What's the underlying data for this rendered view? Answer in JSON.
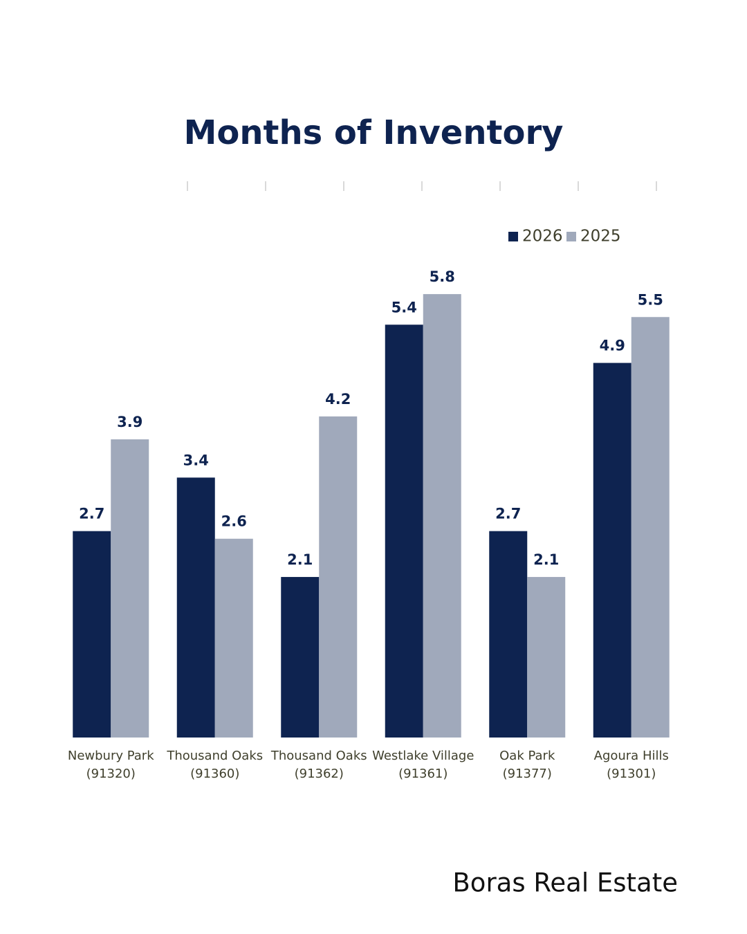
{
  "chart_data": {
    "type": "bar",
    "title": "Months of Inventory",
    "categories": [
      [
        "Newbury Park",
        "(91320)"
      ],
      [
        "Thousand Oaks",
        "(91360)"
      ],
      [
        "Thousand Oaks",
        "(91362)"
      ],
      [
        "Westlake Village",
        "(91361)"
      ],
      [
        "Oak Park",
        "(91377)"
      ],
      [
        "Agoura Hills",
        "(91301)"
      ]
    ],
    "series": [
      {
        "name": "2026",
        "color": "#0e2350",
        "values": [
          2.7,
          3.4,
          2.1,
          5.4,
          2.7,
          4.9
        ]
      },
      {
        "name": "2025",
        "color": "#a0a9bb",
        "values": [
          3.9,
          2.6,
          4.2,
          5.8,
          2.1,
          5.5
        ]
      }
    ],
    "ylim": [
      0,
      6
    ],
    "legend": "top-right",
    "grid": false
  },
  "brand": "Boras Real Estate"
}
